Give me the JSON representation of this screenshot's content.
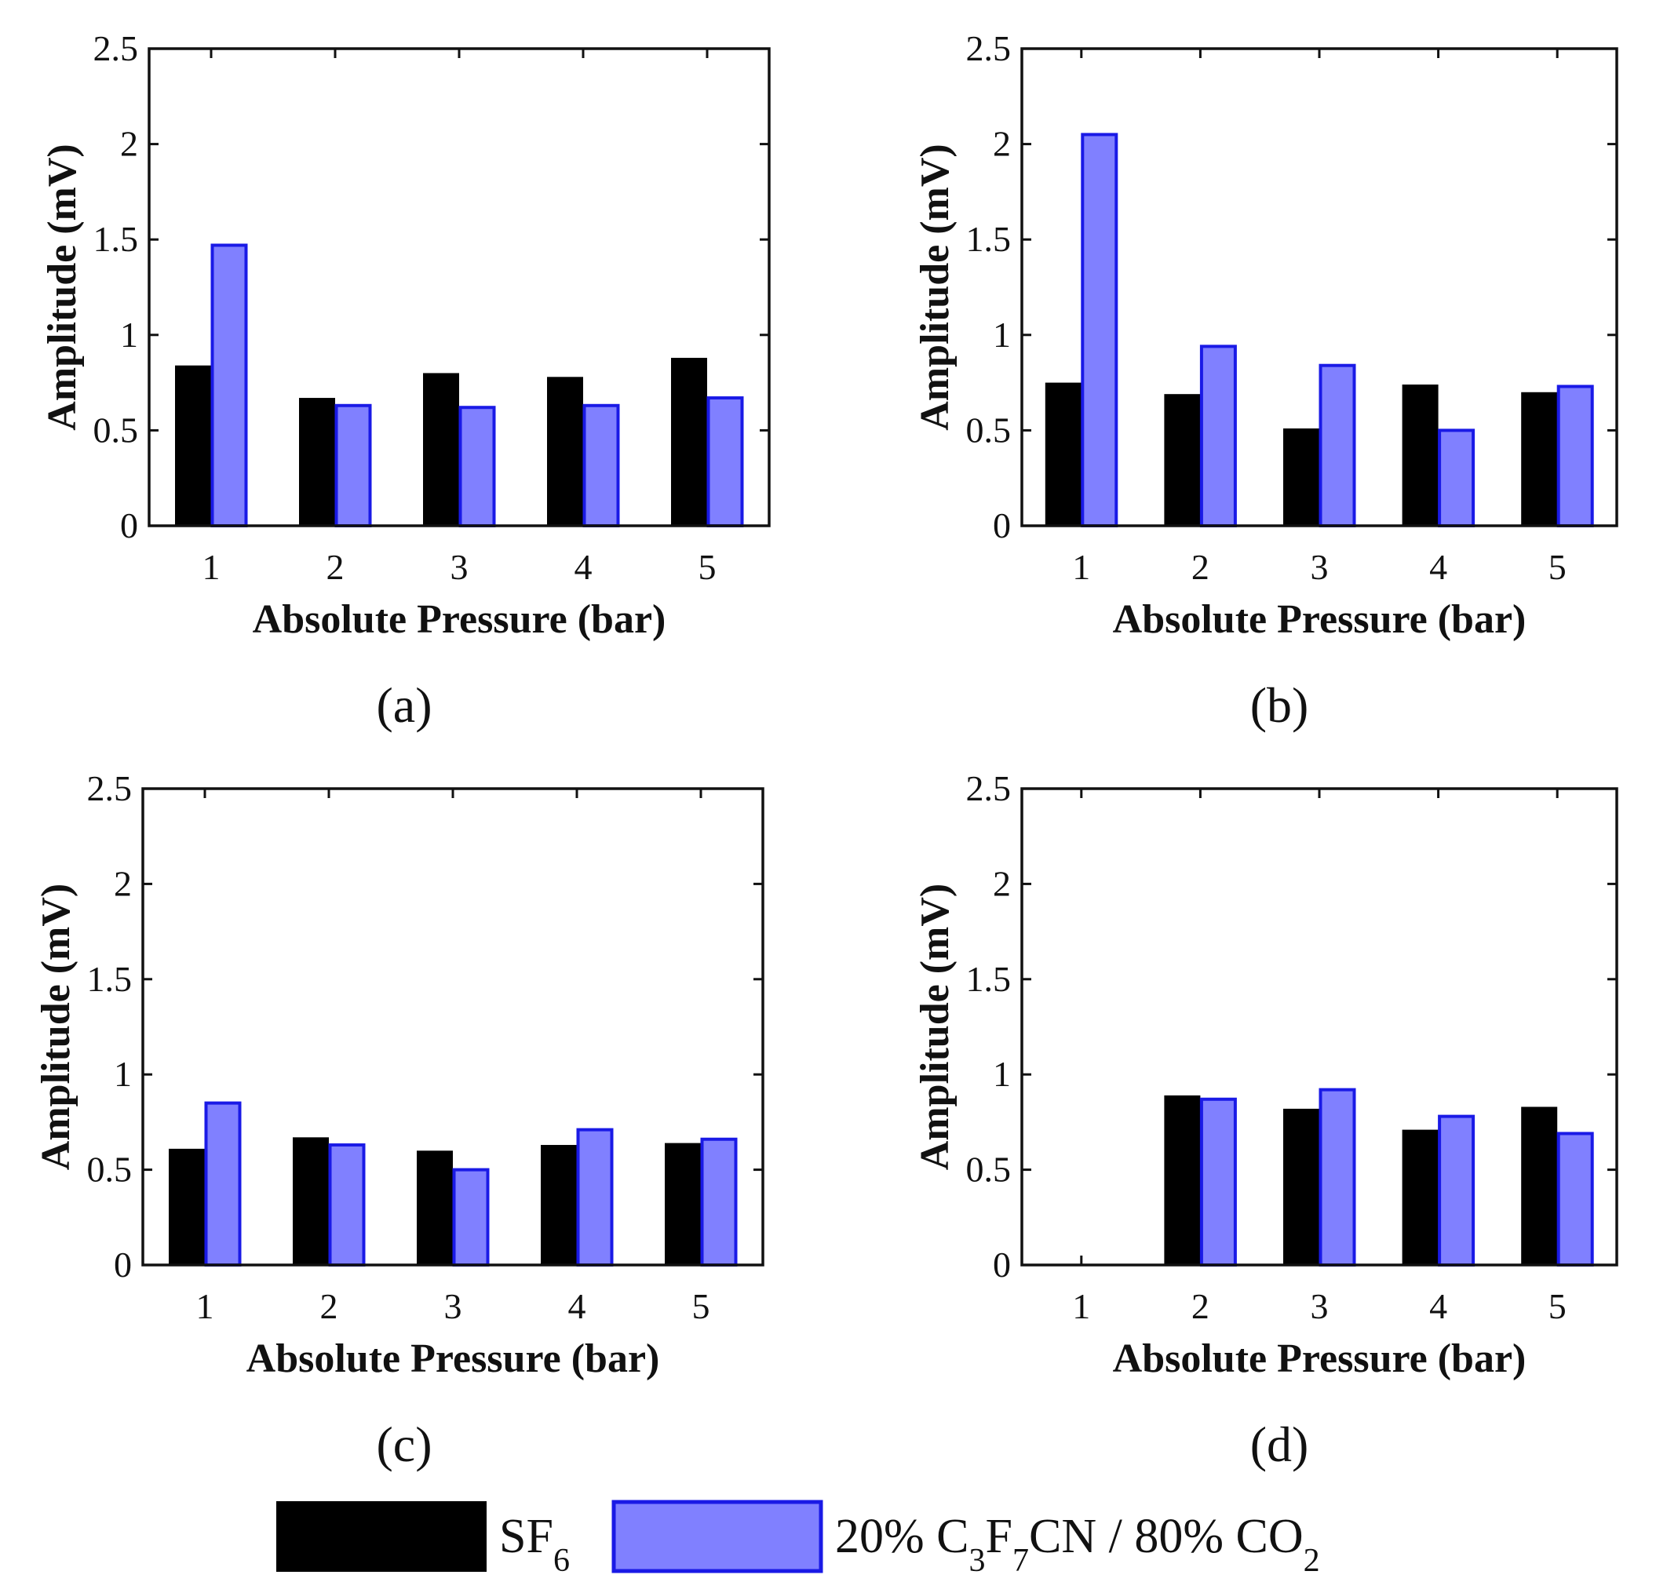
{
  "legend": {
    "series_a": {
      "name": "SF",
      "sub": "6"
    },
    "series_b": {
      "pre": "20% C",
      "sub1": "3",
      "mid1": "F",
      "sub2": "7",
      "mid2": "CN / 80% CO",
      "sub3": "2"
    }
  },
  "colors": {
    "series_a_fill": "#000000",
    "series_b_fill": "#8080ff",
    "series_b_stroke": "#1a1ae6",
    "axis": "#111111"
  },
  "chart_data": [
    {
      "type": "bar",
      "panel": "(a)",
      "xlabel": "Absolute Pressure (bar)",
      "ylabel": "Amplitude (mV)",
      "categories": [
        "1",
        "2",
        "3",
        "4",
        "5"
      ],
      "ylim": [
        0,
        2.5
      ],
      "yticks": [
        "0",
        "0.5",
        "1",
        "1.5",
        "2",
        "2.5"
      ],
      "series": [
        {
          "name": "SF6",
          "values": [
            0.84,
            0.67,
            0.8,
            0.78,
            0.88
          ]
        },
        {
          "name": "20% C3F7CN / 80% CO2",
          "values": [
            1.47,
            0.63,
            0.62,
            0.63,
            0.67
          ]
        }
      ]
    },
    {
      "type": "bar",
      "panel": "(b)",
      "xlabel": "Absolute Pressure (bar)",
      "ylabel": "Amplitude (mV)",
      "categories": [
        "1",
        "2",
        "3",
        "4",
        "5"
      ],
      "ylim": [
        0,
        2.5
      ],
      "yticks": [
        "0",
        "0.5",
        "1",
        "1.5",
        "2",
        "2.5"
      ],
      "series": [
        {
          "name": "SF6",
          "values": [
            0.75,
            0.69,
            0.51,
            0.74,
            0.7
          ]
        },
        {
          "name": "20% C3F7CN / 80% CO2",
          "values": [
            2.05,
            0.94,
            0.84,
            0.5,
            0.73
          ]
        }
      ]
    },
    {
      "type": "bar",
      "panel": "(c)",
      "xlabel": "Absolute Pressure (bar)",
      "ylabel": "Amplitude (mV)",
      "categories": [
        "1",
        "2",
        "3",
        "4",
        "5"
      ],
      "ylim": [
        0,
        2.5
      ],
      "yticks": [
        "0",
        "0.5",
        "1",
        "1.5",
        "2",
        "2.5"
      ],
      "series": [
        {
          "name": "SF6",
          "values": [
            0.61,
            0.67,
            0.6,
            0.63,
            0.64
          ]
        },
        {
          "name": "20% C3F7CN / 80% CO2",
          "values": [
            0.85,
            0.63,
            0.5,
            0.71,
            0.66
          ]
        }
      ]
    },
    {
      "type": "bar",
      "panel": "(d)",
      "xlabel": "Absolute Pressure (bar)",
      "ylabel": "Amplitude (mV)",
      "categories": [
        "1",
        "2",
        "3",
        "4",
        "5"
      ],
      "ylim": [
        0,
        2.5
      ],
      "yticks": [
        "0",
        "0.5",
        "1",
        "1.5",
        "2",
        "2.5"
      ],
      "series": [
        {
          "name": "SF6",
          "values": [
            0,
            0.89,
            0.82,
            0.71,
            0.83
          ]
        },
        {
          "name": "20% C3F7CN / 80% CO2",
          "values": [
            0,
            0.87,
            0.92,
            0.78,
            0.69
          ]
        }
      ]
    }
  ]
}
